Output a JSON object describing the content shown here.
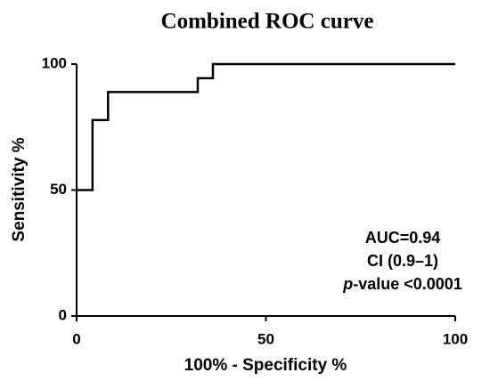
{
  "chart_data": {
    "type": "line",
    "title": "Combined ROC curve",
    "x_label": "100% - Specificity %",
    "y_label": "Sensitivity %",
    "x": [
      0,
      4.2,
      4.2,
      8.3,
      8.3,
      32,
      32,
      36,
      36,
      100
    ],
    "series": [
      {
        "color": "#000000",
        "values": [
          50,
          50,
          77.8,
          77.8,
          88.9,
          88.9,
          94.4,
          94.4,
          100,
          100
        ]
      }
    ],
    "xlim": [
      0,
      100
    ],
    "xticks": [
      0,
      50,
      100
    ],
    "ylim": [
      0,
      100
    ],
    "yticks": [
      0,
      50,
      100
    ],
    "annotations": [
      "AUC=0.94",
      "CI (0.9–1)"
    ],
    "p_value_label": [
      "p",
      "-value <0.0001"
    ]
  }
}
